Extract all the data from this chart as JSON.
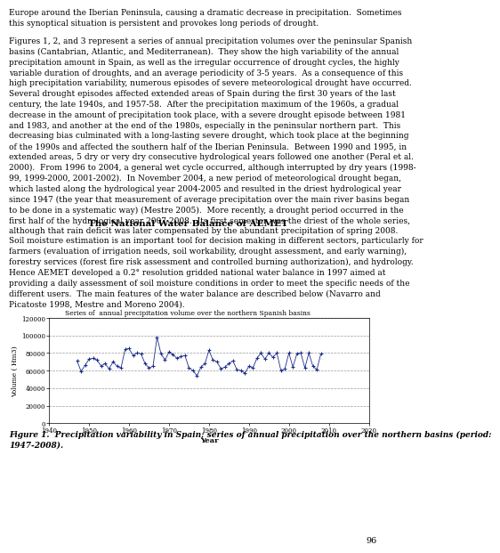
{
  "title": "Series of  annual precipitation volume over the northern Spanish basins",
  "xlabel": "Year",
  "ylabel": "Volume ( Hm3)",
  "xlim": [
    1940,
    2020
  ],
  "ylim": [
    0,
    120000
  ],
  "yticks": [
    0,
    20000,
    40000,
    60000,
    80000,
    100000,
    120000
  ],
  "xticks": [
    1940,
    1950,
    1960,
    1970,
    1980,
    1990,
    2000,
    2010,
    2020
  ],
  "line_color": "#1f2e8a",
  "marker": "+",
  "years": [
    1947,
    1948,
    1949,
    1950,
    1951,
    1952,
    1953,
    1954,
    1955,
    1956,
    1957,
    1958,
    1959,
    1960,
    1961,
    1962,
    1963,
    1964,
    1965,
    1966,
    1967,
    1968,
    1969,
    1970,
    1971,
    1972,
    1973,
    1974,
    1975,
    1976,
    1977,
    1978,
    1979,
    1980,
    1981,
    1982,
    1983,
    1984,
    1985,
    1986,
    1987,
    1988,
    1989,
    1990,
    1991,
    1992,
    1993,
    1994,
    1995,
    1996,
    1997,
    1998,
    1999,
    2000,
    2001,
    2002,
    2003,
    2004,
    2005,
    2006,
    2007,
    2008
  ],
  "values": [
    71000,
    59000,
    66000,
    73000,
    74000,
    72000,
    65000,
    68000,
    62000,
    70000,
    65000,
    63000,
    84000,
    85000,
    77000,
    80000,
    79000,
    68000,
    63000,
    65000,
    98000,
    79000,
    72000,
    81000,
    78000,
    74000,
    76000,
    77000,
    63000,
    60000,
    54000,
    64000,
    68000,
    83000,
    72000,
    70000,
    62000,
    64000,
    68000,
    71000,
    61000,
    60000,
    57000,
    65000,
    63000,
    74000,
    80000,
    73000,
    80000,
    75000,
    80000,
    60000,
    62000,
    80000,
    64000,
    79000,
    80000,
    63000,
    80000,
    65000,
    61000,
    79000
  ],
  "page_bg": "#ffffff",
  "text_color": "#000000",
  "body_text_top": "Europe around the Iberian Peninsula, causing a dramatic decrease in precipitation.  Sometimes\nthis synoptical situation is persistent and provokes long periods of drought.",
  "body_text_main": "Figures 1, 2, and 3 represent a series of annual precipitation volumes over the peninsular Spanish\nbasins (Cantabrian, Atlantic, and Mediterranean).  They show the high variability of the annual\nprecipitation amount in Spain, as well as the irregular occurrence of drought cycles, the highly\nvariable duration of droughts, and an average periodicity of 3-5 years.  As a consequence of this\nhigh precipitation variability, numerous episodes of severe meteorological drought have occurred.\nSeveral drought episodes affected extended areas of Spain during the first 30 years of the last\ncentury, the late 1940s, and 1957-58.  After the precipitation maximum of the 1960s, a gradual\ndecrease in the amount of precipitation took place, with a severe drought episode between 1981\nand 1983, and another at the end of the 1980s, especially in the peninsular northern part.  This\ndecreasing bias culminated with a long-lasting severe drought, which took place at the beginning\nof the 1990s and affected the southern half of the Iberian Peninsula.  Between 1990 and 1995, in\nextended areas, 5 dry or very dry consecutive hydrological years followed one another (Peral et al.\n2000).  From 1996 to 2004, a general wet cycle occurred, although interrupted by dry years (1998-\n99, 1999-2000, 2001-2002).  In November 2004, a new period of meteorological drought began,\nwhich lasted along the hydrological year 2004-2005 and resulted in the driest hydrological year\nsince 1947 (the year that measurement of average precipitation over the main river basins began\nto be done in a systematic way) (Mestre 2005).  More recently, a drought period occurred in the\nfirst half of the hydrological year 2007-2008.  Its first semester was the driest of the whole series,\nalthough that rain deficit was later compensated by the abundant precipitation of spring 2008.",
  "section_title": "The National Water Balance of AEMET",
  "body_text_bottom": "Soil moisture estimation is an important tool for decision making in different sectors, particularly for\nfarmers (evaluation of irrigation needs, soil workability, drought assessment, and early warning),\nforestry services (forest fire risk assessment and controlled burning authorization), and hydrology.\nHence AEMET developed a 0.2° resolution gridded national water balance in 1997 aimed at\nproviding a daily assessment of soil moisture conditions in order to meet the specific needs of the\ndifferent users.  The main features of the water balance are described below (Navarro and\nPicatoste 1998, Mestre and Moreno 2004).",
  "caption": "Figure 1.  Precipitation variability in Spain; series of annual precipitation over the northern basins (period:\n1947-2008).",
  "page_num": "96",
  "text_fontsize": 6.5,
  "title_fontsize": 7.0,
  "section_fontsize": 7.5,
  "caption_fontsize": 6.5
}
